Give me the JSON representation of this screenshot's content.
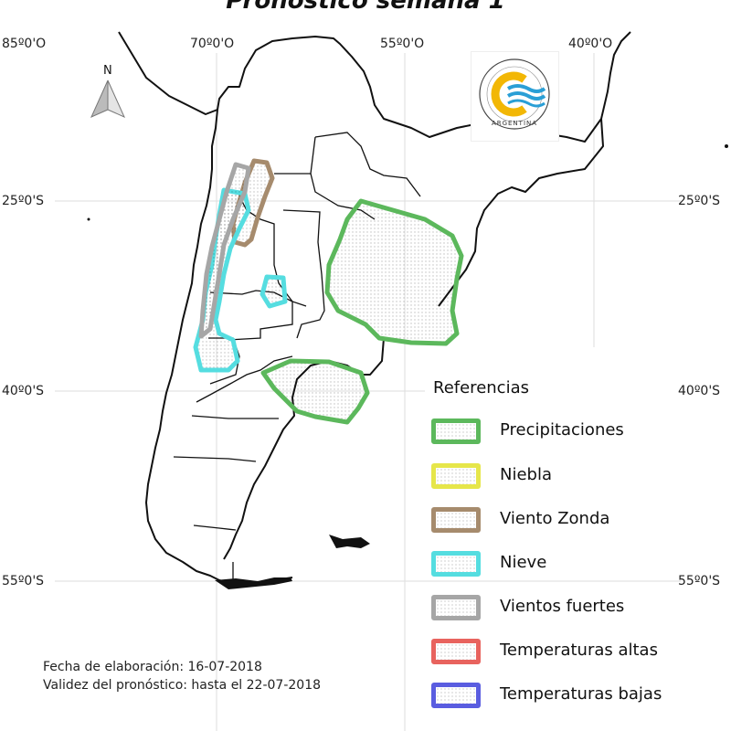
{
  "title": "Pronóstico semana 1",
  "coordinates": {
    "lon_labels": [
      "85º0'O",
      "70º0'O",
      "55º0'O",
      "40º0'O"
    ],
    "lat_labels_left": [
      "25º0'S",
      "40º0'S",
      "55º0'S"
    ],
    "lat_labels_right": [
      "25º0'S",
      "40º0'S",
      "55º0'S"
    ]
  },
  "north_arrow": {
    "label": "N"
  },
  "logo": {
    "text": "ARGENTINA",
    "icon": "smn-logo-icon"
  },
  "legend": {
    "title": "Referencias",
    "items": [
      {
        "label": "Precipitaciones",
        "color": "#5cb85c"
      },
      {
        "label": "Niebla",
        "color": "#e6e64a"
      },
      {
        "label": "Viento Zonda",
        "color": "#a68b6d"
      },
      {
        "label": "Nieve",
        "color": "#55dde0"
      },
      {
        "label": "Vientos fuertes",
        "color": "#a6a6a6"
      },
      {
        "label": "Temperaturas altas",
        "color": "#e8635e"
      },
      {
        "label": "Temperaturas bajas",
        "color": "#5a5de0"
      }
    ]
  },
  "footer": {
    "fecha": "Fecha de elaboración: 16-07-2018",
    "validez": "Validez del pronóstico: hasta el 22-07-2018"
  }
}
